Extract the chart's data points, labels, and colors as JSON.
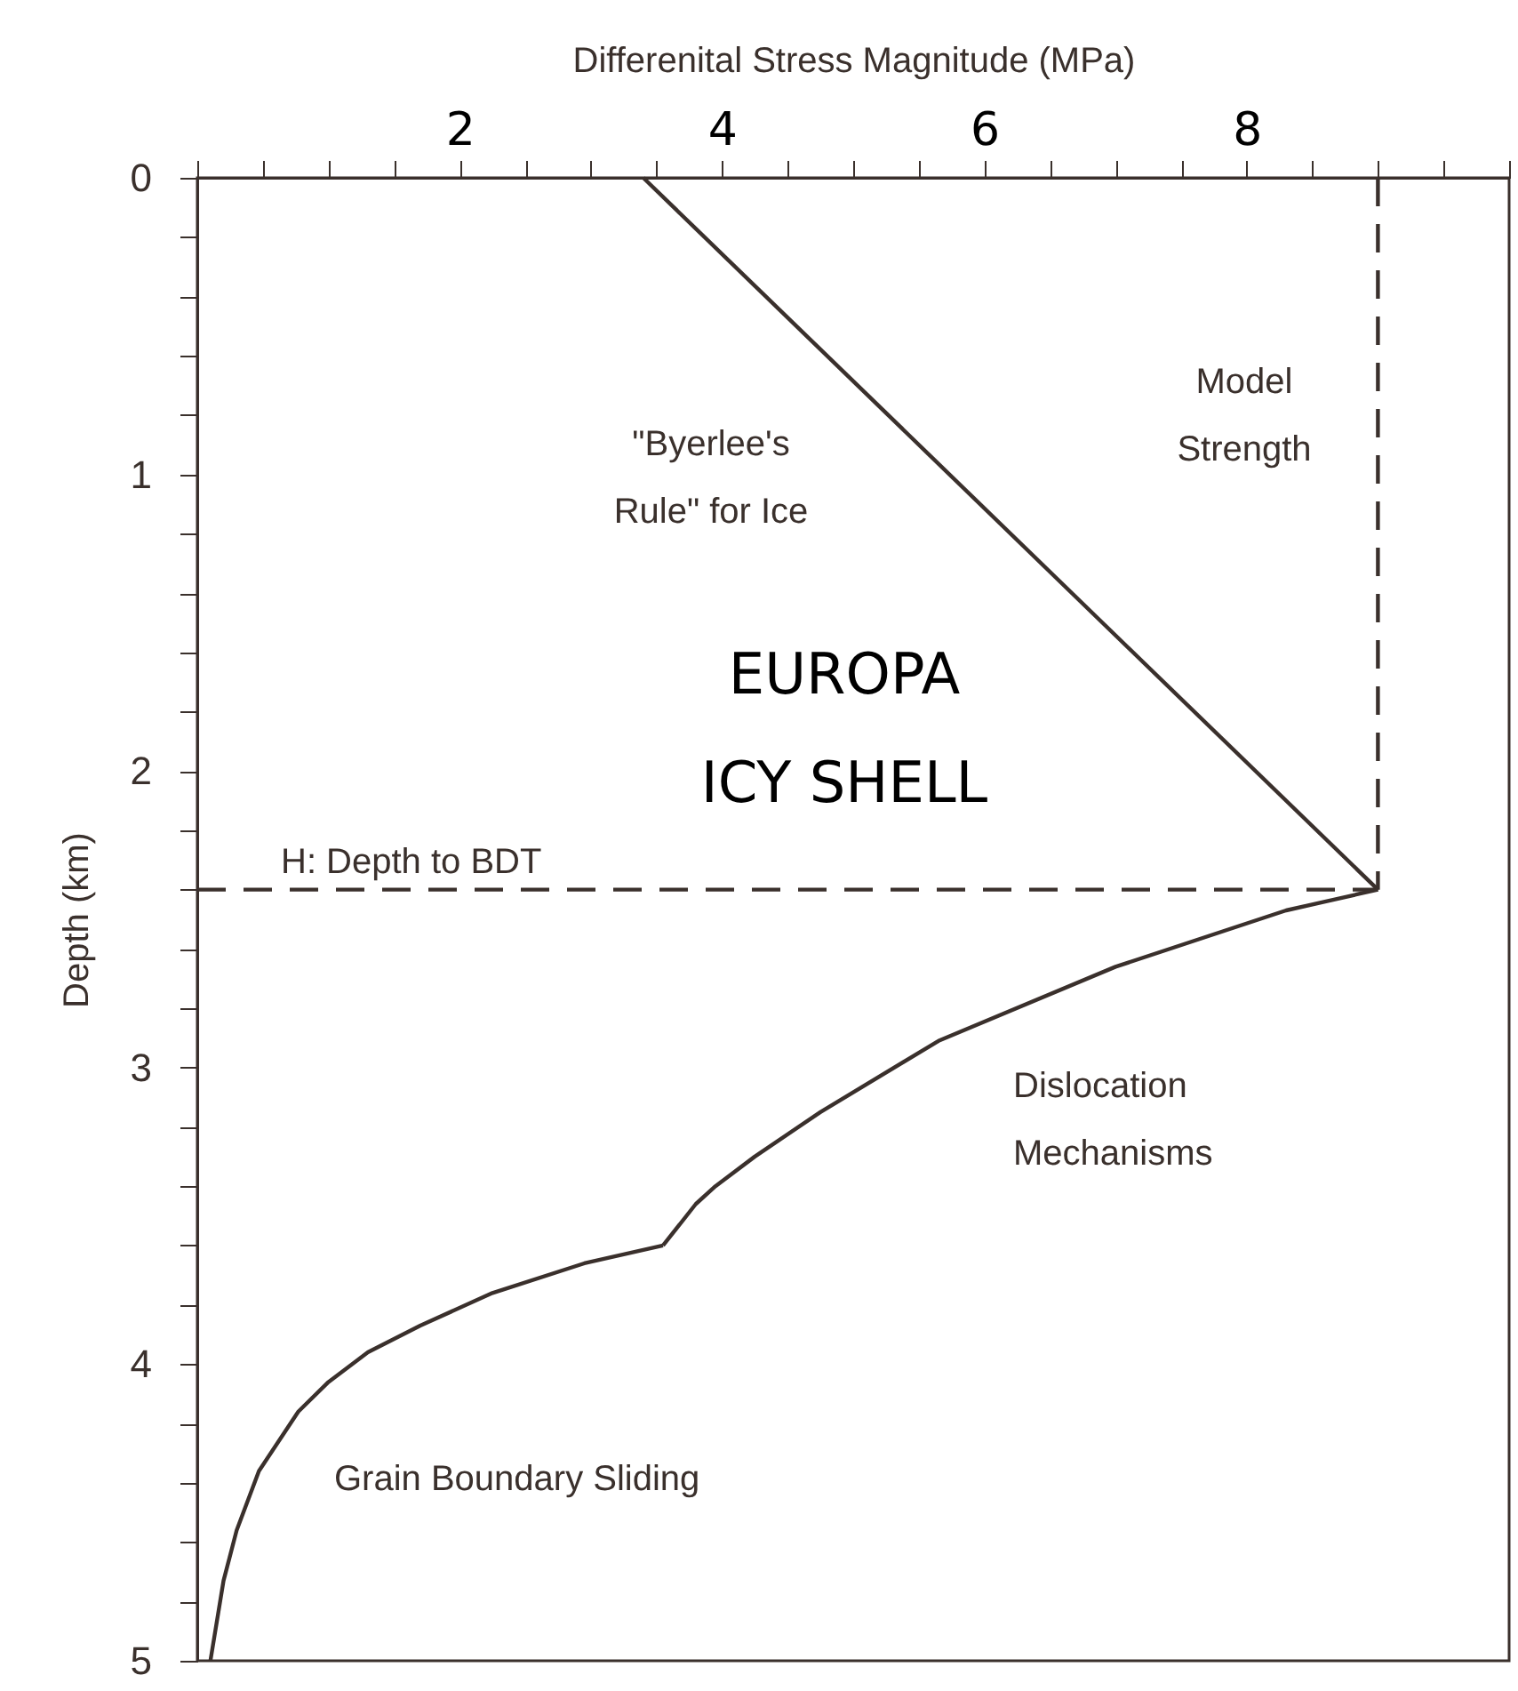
{
  "chart_data": {
    "type": "line",
    "xlabel": "Differenital Stress Magnitude (MPa)",
    "ylabel": "Depth (km)",
    "xlim": [
      0,
      10
    ],
    "ylim": [
      5,
      0
    ],
    "xticks": [
      {
        "value": 0,
        "label": null
      },
      {
        "value": 0.5,
        "label": null
      },
      {
        "value": 1,
        "label": null
      },
      {
        "value": 1.5,
        "label": null
      },
      2,
      {
        "value": 2.5,
        "label": null
      },
      {
        "value": 3,
        "label": null
      },
      {
        "value": 3.5,
        "label": null
      },
      4,
      {
        "value": 4.5,
        "label": null
      },
      {
        "value": 5,
        "label": null
      },
      {
        "value": 5.5,
        "label": null
      },
      6,
      {
        "value": 6.5,
        "label": null
      },
      {
        "value": 7,
        "label": null
      },
      {
        "value": 7.5,
        "label": null
      },
      8,
      {
        "value": 8.5,
        "label": null
      },
      {
        "value": 9,
        "label": null
      },
      {
        "value": 9.5,
        "label": null
      },
      {
        "value": 10,
        "label": null
      }
    ],
    "yticks": [
      0,
      {
        "value": 0.2,
        "label": null
      },
      {
        "value": 0.4,
        "label": null
      },
      {
        "value": 0.6,
        "label": null
      },
      {
        "value": 0.8,
        "label": null
      },
      1,
      {
        "value": 1.2,
        "label": null
      },
      {
        "value": 1.4,
        "label": null
      },
      {
        "value": 1.6,
        "label": null
      },
      {
        "value": 1.8,
        "label": null
      },
      2,
      {
        "value": 2.2,
        "label": null
      },
      {
        "value": 2.4,
        "label": null
      },
      {
        "value": 2.6,
        "label": null
      },
      {
        "value": 2.8,
        "label": null
      },
      3,
      {
        "value": 3.2,
        "label": null
      },
      {
        "value": 3.4,
        "label": null
      },
      {
        "value": 3.6,
        "label": null
      },
      {
        "value": 3.8,
        "label": null
      },
      4,
      {
        "value": 4.2,
        "label": null
      },
      {
        "value": 4.4,
        "label": null
      },
      {
        "value": 4.6,
        "label": null
      },
      {
        "value": 4.8,
        "label": null
      },
      5
    ],
    "series": [
      {
        "name": "\"Byerlee's Rule\" for Ice",
        "color": "#3a302c",
        "line_style": "solid",
        "x": [
          3.4,
          9
        ],
        "values": [
          0,
          2.4
        ]
      },
      {
        "name": "Model Strength",
        "color": "#3a302c",
        "line_style": "dashed",
        "x": [
          9,
          9
        ],
        "values": [
          0,
          2.4
        ]
      },
      {
        "name": "H: Depth to BDT",
        "color": "#3a302c",
        "line_style": "dashed",
        "x": [
          0,
          9
        ],
        "values": [
          2.4,
          2.4
        ]
      },
      {
        "name": "Dislocation Mechanisms",
        "color": "#3a302c",
        "line_style": "solid",
        "x": [
          9,
          8.3,
          7.0,
          5.65,
          4.75,
          4.25,
          3.95,
          3.8,
          3.55
        ],
        "values": [
          2.4,
          2.47,
          2.66,
          2.91,
          3.15,
          3.3,
          3.4,
          3.46,
          3.6
        ]
      },
      {
        "name": "Grain Boundary Sliding",
        "color": "#3a302c",
        "line_style": "solid",
        "x": [
          3.55,
          2.95,
          2.25,
          1.7,
          1.3,
          1.0,
          0.77,
          0.47,
          0.3,
          0.2,
          0.1
        ],
        "values": [
          3.6,
          3.66,
          3.76,
          3.87,
          3.96,
          4.06,
          4.16,
          4.36,
          4.56,
          4.73,
          5
        ]
      }
    ],
    "annotations": [
      "EUROPA ICY SHELL"
    ]
  }
}
